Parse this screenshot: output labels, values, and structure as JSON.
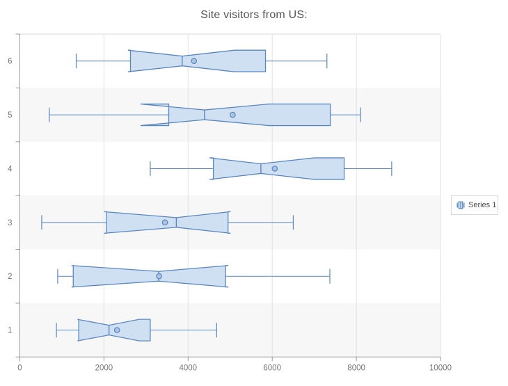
{
  "chart_data": {
    "type": "boxplot",
    "orientation": "horizontal",
    "title": "Site visitors from US:",
    "legend": {
      "position": "right",
      "entries": [
        "Series 1"
      ]
    },
    "series": [
      {
        "name": "Series 1"
      }
    ],
    "categories": [
      "1",
      "2",
      "3",
      "4",
      "5",
      "6"
    ],
    "x_axis": {
      "min": 0,
      "max": 10000,
      "ticks": [
        0,
        2000,
        4000,
        6000,
        8000,
        10000
      ],
      "grid": true
    },
    "y_axis": {
      "labels": [
        "1",
        "2",
        "3",
        "4",
        "5",
        "6"
      ],
      "striped_bands": true
    },
    "points": [
      {
        "category": "1",
        "low": 870,
        "q1": 1400,
        "median": 2120,
        "mean": 2310,
        "q3": 3100,
        "high": 4680,
        "notch_low": 1370,
        "notch_high": 2840
      },
      {
        "category": "2",
        "low": 900,
        "q1": 1270,
        "median": 3300,
        "mean": 3310,
        "q3": 4890,
        "high": 7370,
        "notch_low": 1230,
        "notch_high": 4960
      },
      {
        "category": "3",
        "low": 520,
        "q1": 2060,
        "median": 3720,
        "mean": 3450,
        "q3": 4950,
        "high": 6500,
        "notch_low": 2000,
        "notch_high": 5010
      },
      {
        "category": "4",
        "low": 3100,
        "q1": 4600,
        "median": 5730,
        "mean": 6060,
        "q3": 7710,
        "high": 8840,
        "notch_low": 4510,
        "notch_high": 7000
      },
      {
        "category": "5",
        "low": 700,
        "q1": 3540,
        "median": 4390,
        "mean": 5060,
        "q3": 7380,
        "high": 8100,
        "notch_low": 2870,
        "notch_high": 5920
      },
      {
        "category": "6",
        "low": 1340,
        "q1": 2630,
        "median": 3860,
        "mean": 4140,
        "q3": 5840,
        "high": 7300,
        "notch_low": 2570,
        "notch_high": 5100
      }
    ],
    "colors": {
      "box_stroke": "#5a87c0",
      "box_fill": "#cfe0f2",
      "mean_fill": "#aac4e4",
      "band_fill": "#f7f7f7",
      "grid": "#e2e2e2",
      "plot_border": "#d9d9d9",
      "axis_line": "#9a9a9a",
      "tick_label": "#767676",
      "title_color": "#565656"
    }
  }
}
